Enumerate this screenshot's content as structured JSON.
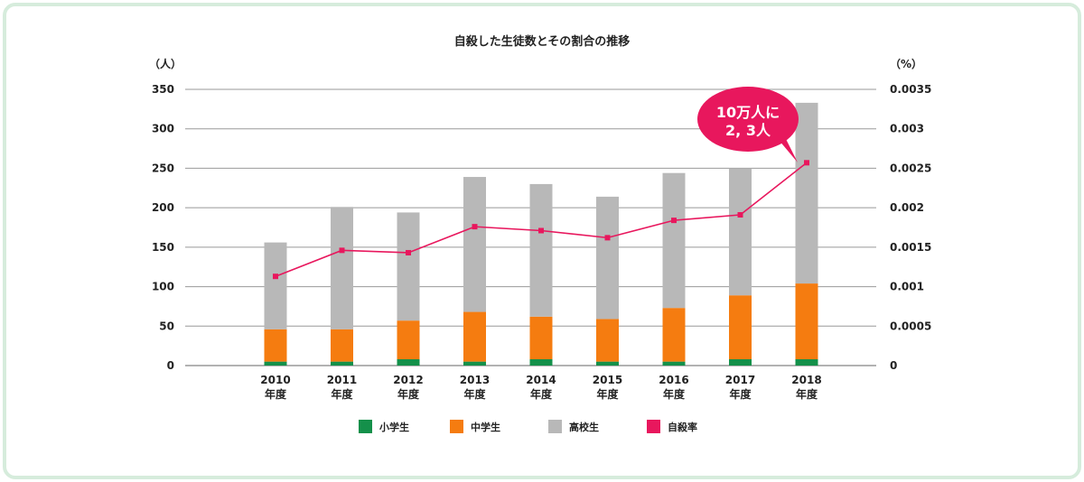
{
  "chart_data": {
    "type": "bar",
    "title": "自殺した生徒数とその割合の推移",
    "y_left_unit": "（人）",
    "y_right_unit": "（%）",
    "categories": [
      [
        "2010",
        "年度"
      ],
      [
        "2011",
        "年度"
      ],
      [
        "2012",
        "年度"
      ],
      [
        "2013",
        "年度"
      ],
      [
        "2014",
        "年度"
      ],
      [
        "2015",
        "年度"
      ],
      [
        "2016",
        "年度"
      ],
      [
        "2017",
        "年度"
      ],
      [
        "2018",
        "年度"
      ]
    ],
    "ylim_left": [
      0,
      350
    ],
    "yticks_left": [
      "0",
      "50",
      "100",
      "150",
      "200",
      "250",
      "300",
      "350"
    ],
    "ylim_right": [
      0,
      0.0035
    ],
    "yticks_right": [
      "0",
      "0.0005",
      "0.001",
      "0.0015",
      "0.002",
      "0.0025",
      "0.003",
      "0.0035"
    ],
    "series": [
      {
        "name": "小学生",
        "type": "bar",
        "stack": true,
        "color": "#14904a",
        "values": [
          5,
          5,
          8,
          5,
          8,
          5,
          5,
          8,
          8
        ]
      },
      {
        "name": "中学生",
        "type": "bar",
        "stack": true,
        "color": "#f57c10",
        "values": [
          41,
          41,
          49,
          63,
          54,
          54,
          68,
          81,
          96
        ]
      },
      {
        "name": "高校生",
        "type": "bar",
        "stack": true,
        "color": "#b8b8b8",
        "values": [
          110,
          155,
          137,
          171,
          168,
          155,
          171,
          161,
          229
        ]
      },
      {
        "name": "自殺率",
        "type": "line",
        "axis": "right",
        "color": "#e8175d",
        "values": [
          0.00113,
          0.00146,
          0.00143,
          0.00176,
          0.00171,
          0.00162,
          0.00184,
          0.00191,
          0.00257
        ]
      }
    ],
    "annotation": {
      "lines": [
        "10万人に",
        "2, 3人"
      ],
      "color": "#e8175d"
    },
    "grid": true,
    "legend_position": "bottom"
  }
}
